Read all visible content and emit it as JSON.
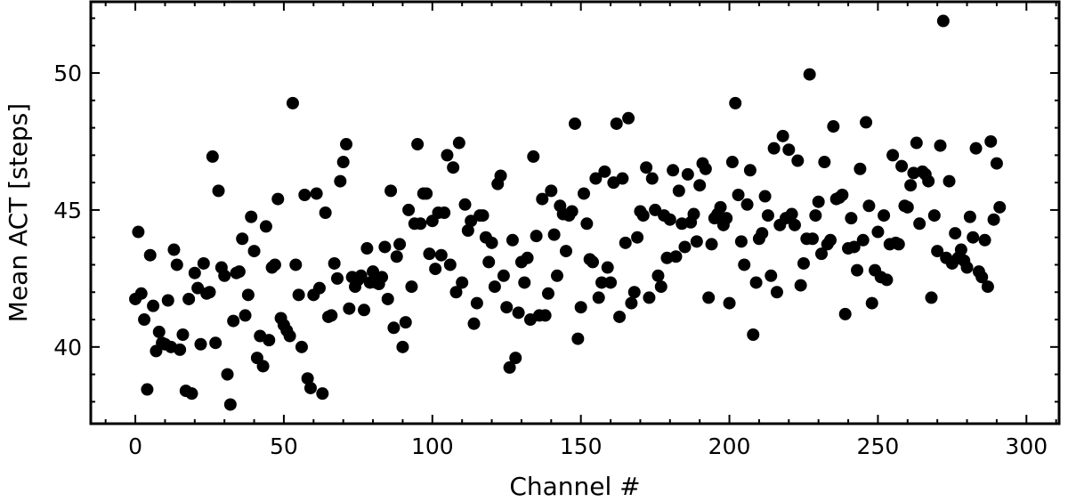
{
  "chart_data": {
    "type": "scatter",
    "x_label": "Channel #",
    "y_label": "Mean ACT [steps]",
    "color": "#000000",
    "xlim": [
      -15,
      311
    ],
    "ylim": [
      37.2,
      52.6
    ],
    "xticks": [
      0,
      50,
      100,
      150,
      200,
      250,
      300
    ],
    "yticks": [
      40,
      45,
      50
    ],
    "xminorticks": [
      -10,
      10,
      20,
      30,
      40,
      60,
      70,
      80,
      90,
      110,
      120,
      130,
      140,
      160,
      170,
      180,
      190,
      210,
      220,
      230,
      240,
      260,
      270,
      280,
      290,
      310
    ],
    "yminorticks": [
      38,
      39,
      41,
      42,
      43,
      44,
      46,
      47,
      48,
      49,
      51,
      52
    ],
    "x": [
      0,
      1,
      2,
      3,
      4,
      5,
      6,
      7,
      8,
      9,
      10,
      11,
      12,
      13,
      14,
      15,
      16,
      17,
      18,
      19,
      20,
      21,
      22,
      23,
      24,
      25,
      26,
      27,
      28,
      29,
      30,
      31,
      32,
      33,
      34,
      35,
      36,
      37,
      38,
      39,
      40,
      41,
      42,
      43,
      44,
      45,
      46,
      47,
      48,
      49,
      50,
      51,
      52,
      53,
      54,
      55,
      56,
      57,
      58,
      59,
      60,
      61,
      62,
      63,
      64,
      65,
      66,
      67,
      68,
      69,
      70,
      71,
      72,
      73,
      74,
      75,
      76,
      77,
      78,
      79,
      80,
      81,
      82,
      83,
      84,
      85,
      86,
      87,
      88,
      89,
      90,
      91,
      92,
      93,
      94,
      95,
      96,
      97,
      98,
      99,
      100,
      101,
      102,
      103,
      104,
      105,
      106,
      107,
      108,
      109,
      110,
      111,
      112,
      113,
      114,
      115,
      116,
      117,
      118,
      119,
      120,
      121,
      122,
      123,
      124,
      125,
      126,
      127,
      128,
      129,
      130,
      131,
      132,
      133,
      134,
      135,
      136,
      137,
      138,
      139,
      140,
      141,
      142,
      143,
      144,
      145,
      146,
      147,
      148,
      149,
      150,
      151,
      152,
      153,
      154,
      155,
      156,
      157,
      158,
      159,
      160,
      161,
      162,
      163,
      164,
      165,
      166,
      167,
      168,
      169,
      170,
      171,
      172,
      173,
      174,
      175,
      176,
      177,
      178,
      179,
      180,
      181,
      182,
      183,
      184,
      185,
      186,
      187,
      188,
      189,
      190,
      191,
      192,
      193,
      194,
      195,
      196,
      197,
      198,
      199,
      200,
      201,
      202,
      203,
      204,
      205,
      206,
      207,
      208,
      209,
      210,
      211,
      212,
      213,
      214,
      215,
      216,
      217,
      218,
      219,
      220,
      221,
      222,
      223,
      224,
      225,
      226,
      227,
      228,
      229,
      230,
      231,
      232,
      233,
      234,
      235,
      236,
      237,
      238,
      239,
      240,
      241,
      242,
      243,
      244,
      245,
      246,
      247,
      248,
      249,
      250,
      251,
      252,
      253,
      254,
      255,
      256,
      257,
      258,
      259,
      260,
      261,
      262,
      263,
      264,
      265,
      266,
      267,
      268,
      269,
      270,
      271,
      272,
      273,
      274,
      275,
      276,
      277,
      278,
      279,
      280,
      281,
      282,
      283,
      284,
      285,
      286,
      287,
      288,
      289,
      290,
      291
    ],
    "values": [
      41.75,
      44.2,
      41.95,
      41.0,
      38.45,
      43.35,
      41.5,
      39.85,
      40.55,
      40.15,
      40.1,
      41.7,
      40.0,
      43.55,
      43.0,
      39.9,
      40.45,
      38.4,
      41.75,
      38.3,
      42.7,
      42.15,
      40.1,
      43.05,
      41.95,
      42.0,
      46.95,
      40.15,
      45.7,
      42.9,
      42.6,
      39.0,
      37.9,
      40.95,
      42.7,
      42.75,
      43.95,
      41.15,
      41.9,
      44.75,
      43.5,
      39.6,
      40.4,
      39.3,
      44.4,
      40.25,
      42.9,
      43.0,
      45.4,
      41.05,
      40.8,
      40.6,
      40.4,
      48.9,
      43.0,
      41.9,
      40.0,
      45.55,
      38.85,
      38.5,
      41.9,
      45.6,
      42.15,
      38.3,
      44.9,
      41.1,
      41.15,
      43.05,
      42.5,
      46.05,
      46.75,
      47.4,
      41.4,
      42.55,
      42.2,
      42.45,
      42.6,
      41.35,
      43.6,
      42.35,
      42.75,
      42.35,
      42.3,
      42.55,
      43.65,
      41.75,
      45.7,
      40.7,
      43.3,
      43.75,
      40.0,
      40.9,
      45.0,
      42.2,
      44.5,
      47.4,
      44.5,
      45.6,
      45.6,
      43.4,
      44.6,
      42.85,
      44.9,
      43.35,
      44.9,
      47.0,
      43.0,
      46.55,
      42.0,
      47.45,
      42.35,
      45.2,
      44.25,
      44.6,
      40.85,
      41.6,
      44.8,
      44.8,
      44.0,
      43.1,
      43.8,
      42.2,
      45.95,
      46.25,
      42.6,
      41.45,
      39.25,
      43.9,
      39.6,
      41.25,
      43.1,
      42.35,
      43.25,
      41.0,
      46.95,
      44.05,
      41.15,
      45.4,
      41.15,
      41.95,
      45.7,
      44.1,
      42.6,
      45.15,
      44.85,
      43.5,
      44.8,
      44.95,
      48.15,
      40.3,
      41.45,
      45.6,
      44.5,
      43.2,
      43.1,
      46.15,
      41.8,
      42.35,
      46.4,
      42.9,
      42.35,
      46.0,
      48.15,
      41.1,
      46.15,
      43.8,
      48.35,
      41.6,
      42.0,
      44.0,
      44.95,
      44.8,
      46.55,
      41.8,
      46.15,
      45.0,
      42.6,
      42.2,
      44.8,
      43.25,
      44.65,
      46.45,
      43.3,
      45.7,
      44.5,
      43.65,
      46.3,
      44.55,
      44.85,
      43.85,
      45.9,
      46.7,
      46.5,
      41.8,
      43.75,
      44.7,
      44.85,
      45.1,
      44.45,
      44.7,
      41.6,
      46.75,
      48.9,
      45.55,
      43.85,
      43.0,
      45.2,
      46.45,
      40.45,
      42.35,
      43.95,
      44.15,
      45.5,
      44.8,
      42.6,
      47.25,
      42.0,
      44.45,
      47.7,
      44.7,
      47.2,
      44.85,
      44.45,
      46.8,
      42.25,
      43.05,
      43.95,
      49.95,
      43.95,
      44.8,
      45.3,
      43.4,
      46.75,
      43.75,
      43.9,
      48.05,
      45.4,
      45.45,
      45.55,
      41.2,
      43.6,
      44.7,
      43.65,
      42.8,
      46.5,
      43.9,
      48.2,
      45.15,
      41.6,
      42.8,
      44.2,
      42.55,
      44.8,
      42.45,
      43.75,
      47.0,
      43.8,
      43.75,
      46.6,
      45.15,
      45.1,
      45.9,
      46.35,
      47.45,
      44.5,
      46.4,
      46.3,
      46.05,
      41.8,
      44.8,
      43.5,
      47.35,
      51.9,
      43.25,
      46.05,
      43.05,
      44.15,
      43.25,
      43.55,
      43.15,
      42.9,
      44.75,
      44.0,
      47.25,
      42.75,
      42.55,
      43.9,
      42.2,
      47.5,
      44.65,
      46.7,
      45.1
    ]
  }
}
